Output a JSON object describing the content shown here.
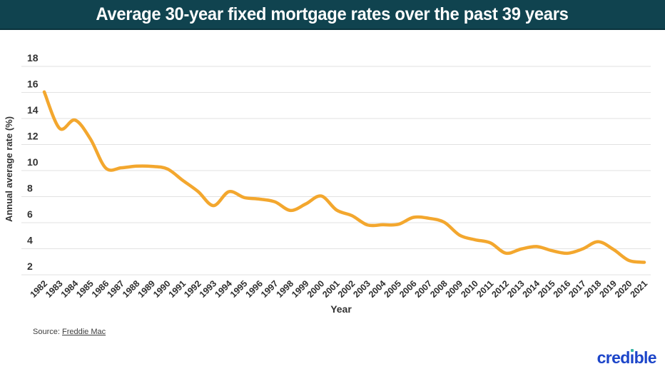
{
  "header": {
    "title": "Average 30-year fixed mortgage rates over the past 39 years"
  },
  "chart_data": {
    "type": "line",
    "title": "Average 30-year fixed mortgage rates over the past 39 years",
    "xlabel": "Year",
    "ylabel": "Annual average rate (%)",
    "categories": [
      "1982",
      "1983",
      "1984",
      "1985",
      "1986",
      "1987",
      "1988",
      "1989",
      "1990",
      "1991",
      "1992",
      "1993",
      "1994",
      "1995",
      "1996",
      "1997",
      "1998",
      "1999",
      "2000",
      "2001",
      "2002",
      "2003",
      "2004",
      "2005",
      "2006",
      "2007",
      "2008",
      "2009",
      "2010",
      "2011",
      "2012",
      "2013",
      "2014",
      "2015",
      "2016",
      "2017",
      "2018",
      "2019",
      "2020",
      "2021"
    ],
    "values": [
      16.04,
      13.24,
      13.88,
      12.43,
      10.19,
      10.21,
      10.34,
      10.32,
      10.13,
      9.25,
      8.39,
      7.31,
      8.38,
      7.93,
      7.81,
      7.6,
      6.94,
      7.44,
      8.05,
      6.97,
      6.54,
      5.83,
      5.84,
      5.87,
      6.41,
      6.34,
      6.03,
      5.04,
      4.69,
      4.45,
      3.66,
      3.98,
      4.17,
      3.85,
      3.65,
      3.99,
      4.54,
      3.94,
      3.1,
      2.96
    ],
    "yticks": [
      18,
      16,
      14,
      12,
      10,
      8,
      6,
      4,
      2
    ],
    "ylim": [
      2,
      18
    ],
    "grid": "horizontal",
    "legend": "none",
    "line_color": "#f3a72e"
  },
  "footer": {
    "source_label": "Source:",
    "source_link": "Freddie Mac",
    "logo": {
      "pre": "cred",
      "i_char": "ı",
      "post": "ble"
    }
  },
  "colors": {
    "header_bg": "#10434f",
    "header_border": "#0a323c",
    "line": "#f3a72e",
    "grid": "#e2e2e2",
    "logo_blue": "#1c45c9",
    "logo_dot": "#35b3a4"
  }
}
